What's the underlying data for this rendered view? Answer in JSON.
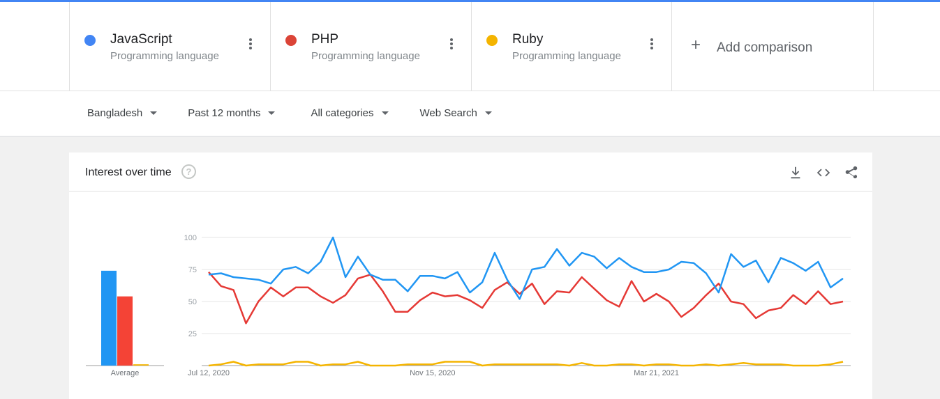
{
  "terms": [
    {
      "name": "JavaScript",
      "type": "Programming language",
      "color": "#4285f4"
    },
    {
      "name": "PHP",
      "type": "Programming language",
      "color": "#db4437"
    },
    {
      "name": "Ruby",
      "type": "Programming language",
      "color": "#f4b400"
    }
  ],
  "add_comparison": {
    "icon": "+",
    "label": "Add comparison"
  },
  "filters": [
    {
      "label": "Bangladesh"
    },
    {
      "label": "Past 12 months"
    },
    {
      "label": "All categories"
    },
    {
      "label": "Web Search"
    }
  ],
  "card": {
    "title": "Interest over time",
    "help_icon": "?",
    "tools": [
      "download-icon",
      "embed-icon",
      "share-icon"
    ]
  },
  "chart_data": {
    "type": "line",
    "ylim": [
      0,
      100
    ],
    "y_ticks": [
      "25",
      "50",
      "75",
      "100"
    ],
    "x_ticks": [
      {
        "label": "Jul 12, 2020",
        "index": 0
      },
      {
        "label": "Nov 15, 2020",
        "index": 18
      },
      {
        "label": "Mar 21, 2021",
        "index": 36
      }
    ],
    "series": [
      {
        "name": "JavaScript",
        "color": "#2196f3",
        "values": [
          71,
          72,
          69,
          68,
          67,
          64,
          75,
          77,
          72,
          81,
          100,
          69,
          85,
          71,
          67,
          67,
          58,
          70,
          70,
          68,
          73,
          57,
          65,
          88,
          67,
          52,
          75,
          77,
          91,
          78,
          88,
          85,
          76,
          84,
          77,
          73,
          73,
          75,
          81,
          80,
          72,
          57,
          87,
          77,
          82,
          65,
          84,
          80,
          74,
          81,
          61,
          68
        ]
      },
      {
        "name": "PHP",
        "color": "#e53935",
        "values": [
          73,
          62,
          59,
          33,
          50,
          61,
          54,
          61,
          61,
          54,
          49,
          55,
          68,
          71,
          58,
          42,
          42,
          51,
          57,
          54,
          55,
          51,
          45,
          59,
          65,
          56,
          64,
          48,
          58,
          57,
          69,
          60,
          51,
          46,
          66,
          50,
          56,
          50,
          38,
          45,
          55,
          64,
          50,
          48,
          37,
          43,
          45,
          55,
          48,
          58,
          48,
          50
        ]
      },
      {
        "name": "Ruby",
        "color": "#f4b400",
        "values": [
          0,
          1,
          3,
          0,
          1,
          1,
          1,
          3,
          3,
          0,
          1,
          1,
          3,
          0,
          0,
          0,
          1,
          1,
          1,
          3,
          3,
          3,
          0,
          1,
          1,
          1,
          1,
          1,
          1,
          0,
          2,
          0,
          0,
          1,
          1,
          0,
          1,
          1,
          0,
          0,
          1,
          0,
          1,
          2,
          1,
          1,
          1,
          0,
          0,
          0,
          1,
          3
        ]
      }
    ],
    "averages": {
      "label": "Average",
      "values": [
        {
          "name": "JavaScript",
          "value": 74,
          "color": "#2196f3"
        },
        {
          "name": "PHP",
          "value": 54,
          "color": "#f44336"
        },
        {
          "name": "Ruby",
          "value": 1,
          "color": "#f4b400"
        }
      ]
    },
    "grid": true
  }
}
